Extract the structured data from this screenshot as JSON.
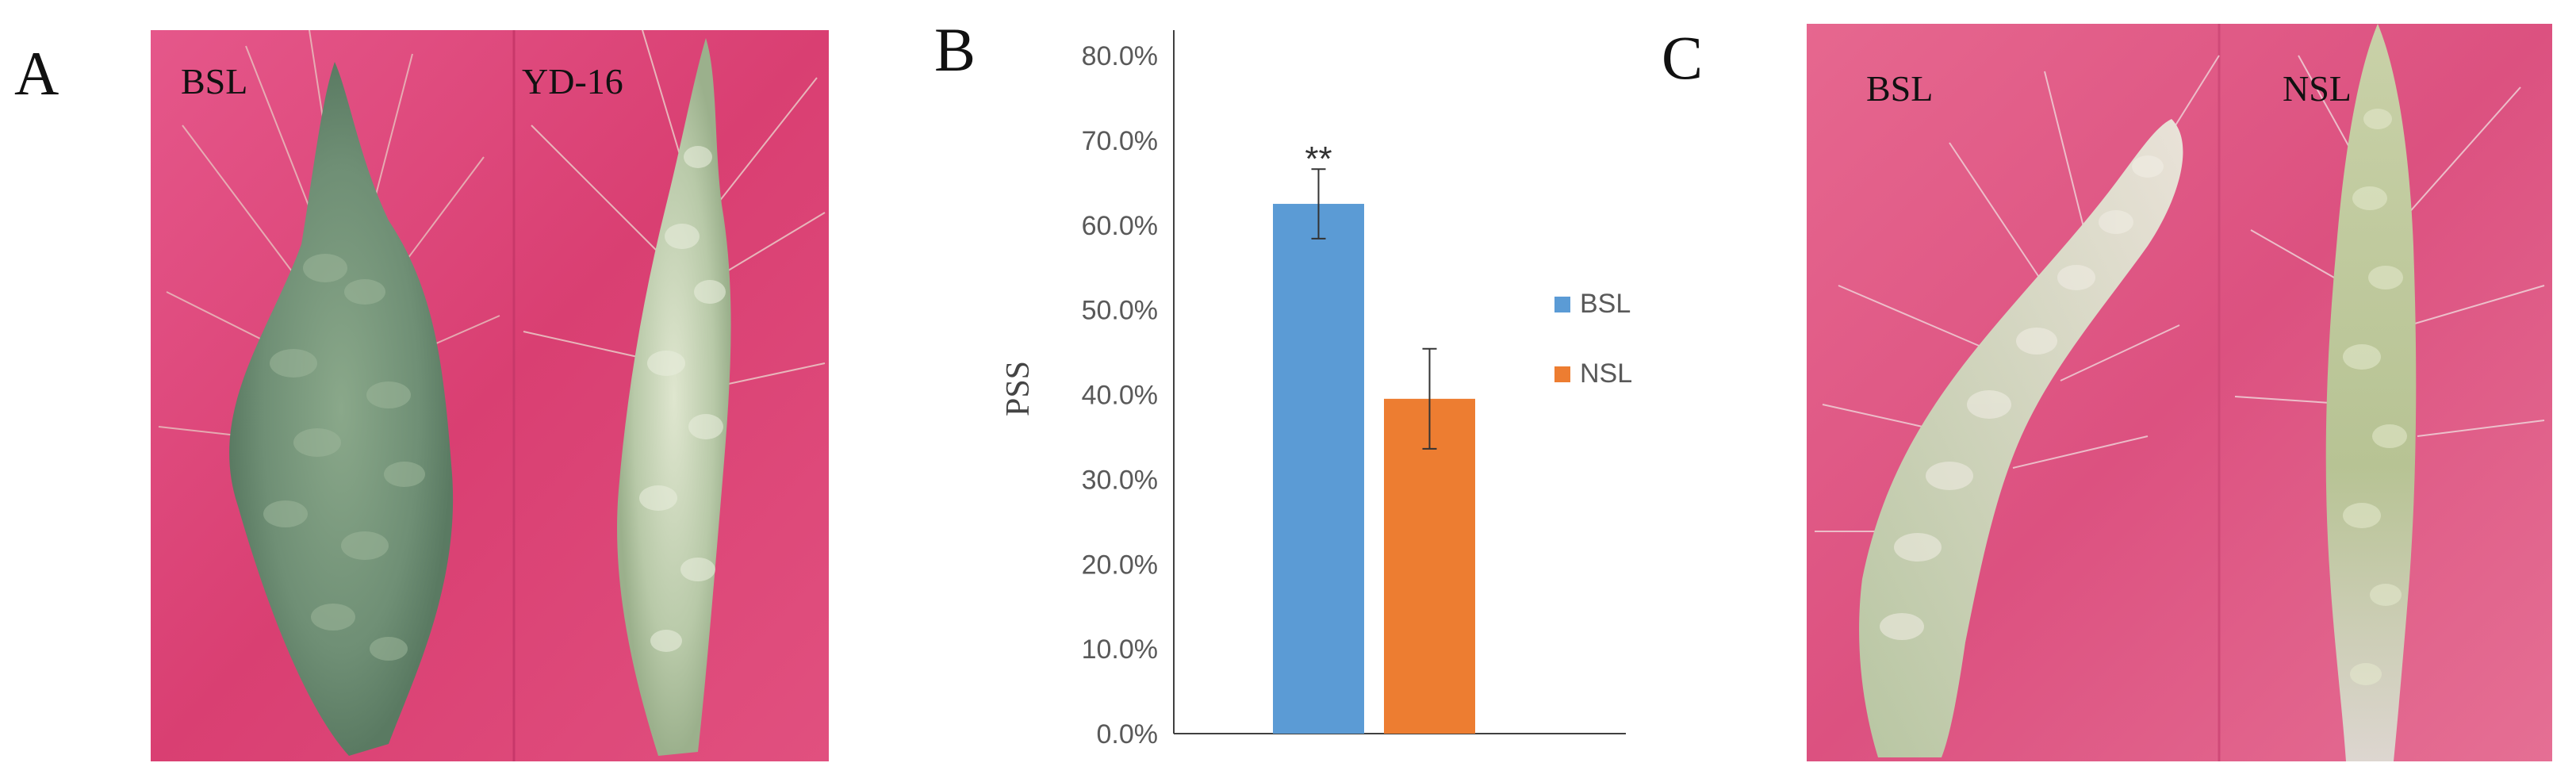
{
  "panels": {
    "a": {
      "letter": "A",
      "left_label": "BSL",
      "right_label": "YD-16"
    },
    "b": {
      "letter": "B"
    },
    "c": {
      "letter": "C",
      "left_label": "BSL",
      "right_label": "NSL"
    }
  },
  "colors": {
    "background_magenta": "#e0487a",
    "bsl_bar": "#5b9bd5",
    "nsl_bar": "#ed7d31",
    "axis": "#404040"
  },
  "chart_data": {
    "type": "bar",
    "title": "",
    "xlabel": "",
    "ylabel": "PSS",
    "ylim": [
      0,
      0.8
    ],
    "yticks": [
      "0.0%",
      "10.0%",
      "20.0%",
      "30.0%",
      "40.0%",
      "50.0%",
      "60.0%",
      "70.0%",
      "80.0%"
    ],
    "series": [
      {
        "name": "BSL",
        "value": 0.625,
        "error": 0.041,
        "annotation": "**",
        "color": "#5b9bd5"
      },
      {
        "name": "NSL",
        "value": 0.395,
        "error": 0.059,
        "annotation": "",
        "color": "#ed7d31"
      }
    ],
    "legend": [
      "BSL",
      "NSL"
    ],
    "legend_position": "right"
  }
}
